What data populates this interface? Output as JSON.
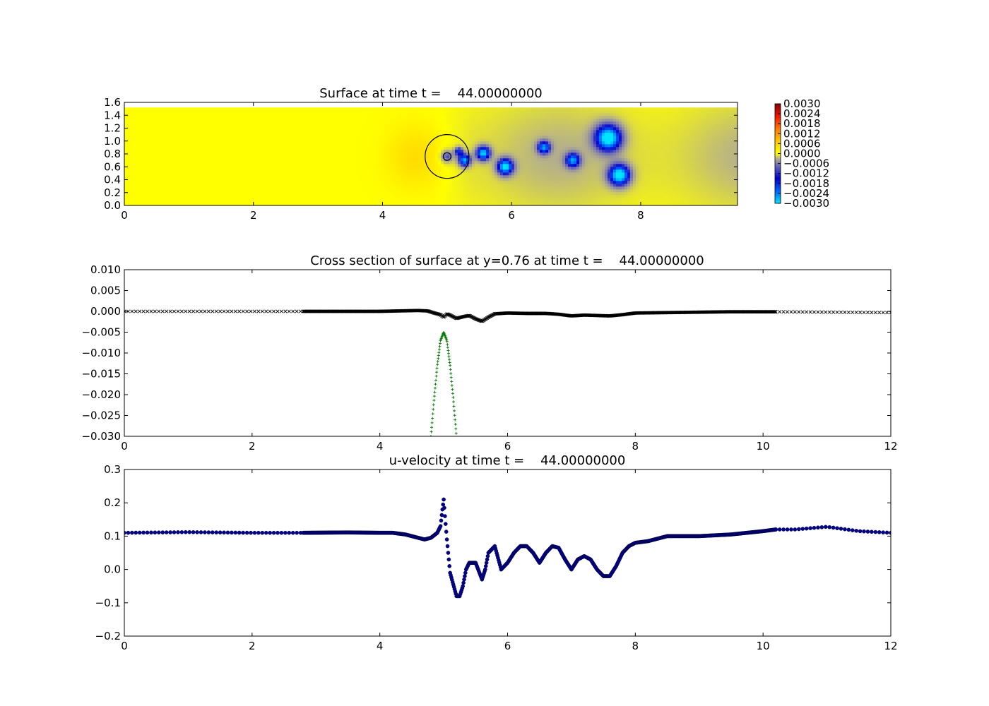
{
  "chart_data": [
    {
      "type": "heatmap",
      "title": "Surface at time t =    44.00000000",
      "xlim": [
        0,
        9.5
      ],
      "ylim": [
        0,
        1.6
      ],
      "xticks": [
        "0",
        "2",
        "4",
        "6",
        "8"
      ],
      "yticks": [
        "0.0",
        "0.2",
        "0.4",
        "0.6",
        "0.8",
        "1.0",
        "1.2",
        "1.4",
        "1.6"
      ],
      "colorbar": {
        "min": -0.003,
        "max": 0.003,
        "ticks": [
          "0.0030",
          "0.0024",
          "0.0018",
          "0.0012",
          "0.0006",
          "0.0000",
          "−0.0006",
          "−0.0012",
          "−0.0018",
          "−0.0024",
          "−0.0030"
        ]
      },
      "field_extent_y": [
        0,
        1.52
      ],
      "body": {
        "center": [
          5.0,
          0.76
        ],
        "outer_radius": 0.34,
        "inner_radius": 0.06
      },
      "depressions": [
        {
          "x": 5.0,
          "y": 0.76,
          "r": 0.07,
          "v": -0.0014
        },
        {
          "x": 5.18,
          "y": 0.84,
          "r": 0.05,
          "v": -0.0018
        },
        {
          "x": 5.27,
          "y": 0.7,
          "r": 0.07,
          "v": -0.0026
        },
        {
          "x": 5.56,
          "y": 0.81,
          "r": 0.08,
          "v": -0.0027
        },
        {
          "x": 5.9,
          "y": 0.6,
          "r": 0.09,
          "v": -0.0028
        },
        {
          "x": 6.5,
          "y": 0.9,
          "r": 0.07,
          "v": -0.0022
        },
        {
          "x": 6.95,
          "y": 0.7,
          "r": 0.08,
          "v": -0.0022
        },
        {
          "x": 7.5,
          "y": 1.05,
          "r": 0.15,
          "v": -0.003
        },
        {
          "x": 7.67,
          "y": 0.47,
          "r": 0.12,
          "v": -0.003
        }
      ],
      "gray_wake": {
        "x_range": [
          4.8,
          9.5
        ],
        "v": -0.0006
      },
      "warm_region": {
        "x": 4.5,
        "y": 0.75,
        "v": 0.0004
      }
    },
    {
      "type": "scatter",
      "title": "Cross section of surface at y=0.76 at time t =    44.00000000",
      "xlim": [
        0,
        12
      ],
      "ylim": [
        -0.03,
        0.01
      ],
      "xticks": [
        "0",
        "2",
        "4",
        "6",
        "8",
        "10",
        "12"
      ],
      "yticks": [
        "0.010",
        "0.005",
        "0.000",
        "−0.005",
        "−0.010",
        "−0.015",
        "−0.020",
        "−0.025",
        "−0.030"
      ],
      "surface_profile": {
        "x": [
          0,
          2.8,
          4.0,
          4.3,
          4.6,
          4.75,
          4.85,
          4.95,
          5.0,
          5.05,
          5.1,
          5.2,
          5.3,
          5.4,
          5.5,
          5.6,
          5.7,
          5.8,
          6.0,
          6.3,
          6.6,
          6.8,
          7.0,
          7.2,
          7.4,
          7.6,
          7.8,
          8.0,
          8.5,
          9.0,
          9.5,
          10.0,
          10.2,
          12.0
        ],
        "y": [
          0.0,
          0.0,
          0.0,
          0.0001,
          0.0002,
          0.0001,
          -0.0004,
          -0.0008,
          -0.0014,
          -0.0006,
          -0.0009,
          -0.0017,
          -0.0013,
          -0.001,
          -0.0018,
          -0.0024,
          -0.0014,
          -0.0006,
          -0.0004,
          -0.0005,
          -0.0005,
          -0.0007,
          -0.0011,
          -0.0009,
          -0.001,
          -0.0011,
          -0.0008,
          -0.0004,
          -0.0003,
          -0.0002,
          -0.0001,
          -0.0001,
          -0.0001,
          -0.0003
        ]
      },
      "body_profile": {
        "x": [
          4.8,
          4.85,
          4.9,
          4.95,
          5.0,
          5.05,
          5.1,
          5.15,
          5.2
        ],
        "y": [
          -0.03,
          -0.021,
          -0.013,
          -0.007,
          -0.005,
          -0.007,
          -0.013,
          -0.021,
          -0.03
        ]
      }
    },
    {
      "type": "scatter",
      "title": "u-velocity at time t =    44.00000000",
      "xlim": [
        0,
        12
      ],
      "ylim": [
        -0.2,
        0.3
      ],
      "xticks": [
        "0",
        "2",
        "4",
        "6",
        "8",
        "10",
        "12"
      ],
      "yticks": [
        "0.3",
        "0.2",
        "0.1",
        "0.0",
        "−0.1",
        "−0.2"
      ],
      "x": [
        0,
        1,
        2,
        2.8,
        3.5,
        4.0,
        4.2,
        4.4,
        4.6,
        4.7,
        4.8,
        4.9,
        4.95,
        4.98,
        5.0,
        5.02,
        5.05,
        5.1,
        5.2,
        5.25,
        5.3,
        5.35,
        5.4,
        5.5,
        5.6,
        5.65,
        5.7,
        5.8,
        5.9,
        6.0,
        6.1,
        6.2,
        6.3,
        6.4,
        6.5,
        6.6,
        6.7,
        6.8,
        6.9,
        7.0,
        7.1,
        7.2,
        7.3,
        7.4,
        7.5,
        7.6,
        7.7,
        7.8,
        7.9,
        8.0,
        8.2,
        8.5,
        9.0,
        9.5,
        10.0,
        10.2,
        10.5,
        11.0,
        11.5,
        12.0
      ],
      "y": [
        0.11,
        0.112,
        0.11,
        0.11,
        0.111,
        0.11,
        0.11,
        0.105,
        0.095,
        0.09,
        0.095,
        0.11,
        0.13,
        0.18,
        0.21,
        0.16,
        0.09,
        -0.01,
        -0.08,
        -0.08,
        -0.05,
        0.0,
        0.02,
        0.02,
        -0.03,
        0.0,
        0.05,
        0.07,
        0.0,
        0.02,
        0.05,
        0.07,
        0.07,
        0.05,
        0.02,
        0.05,
        0.07,
        0.065,
        0.03,
        0.0,
        0.03,
        0.04,
        0.03,
        0.0,
        -0.02,
        -0.02,
        0.01,
        0.05,
        0.07,
        0.08,
        0.085,
        0.1,
        0.1,
        0.105,
        0.115,
        0.12,
        0.12,
        0.128,
        0.115,
        0.11
      ]
    }
  ]
}
